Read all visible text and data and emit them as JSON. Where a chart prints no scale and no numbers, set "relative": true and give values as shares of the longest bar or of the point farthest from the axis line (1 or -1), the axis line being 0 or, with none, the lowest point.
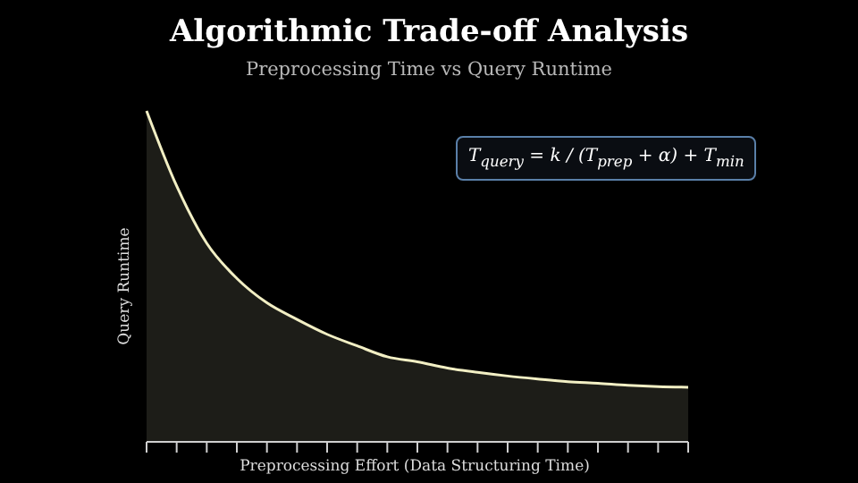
{
  "chart_data": {
    "type": "area",
    "title": "Algorithmic Trade-off Analysis",
    "subtitle": "Preprocessing Time vs Query Runtime",
    "xlabel": "Preprocessing Effort (Data Structuring Time)",
    "ylabel": "Query Runtime",
    "relative": true,
    "annotations": [
      "T$_{query}$ = k / (T$_{prep}$ + α) + T$_{min}$"
    ],
    "categories": [
      null,
      null,
      null,
      null,
      null,
      null,
      null,
      null,
      null,
      null,
      null,
      null,
      null,
      null,
      null,
      null,
      null,
      null,
      null
    ],
    "series": [
      {
        "color": "#f2efc4",
        "values": [
          1.0,
          0.773,
          0.6,
          0.494,
          0.42,
          0.37,
          0.325,
          0.29,
          0.257,
          0.242,
          0.223,
          0.21,
          0.199,
          0.19,
          0.182,
          0.177,
          0.171,
          0.167,
          0.165
        ]
      }
    ]
  }
}
